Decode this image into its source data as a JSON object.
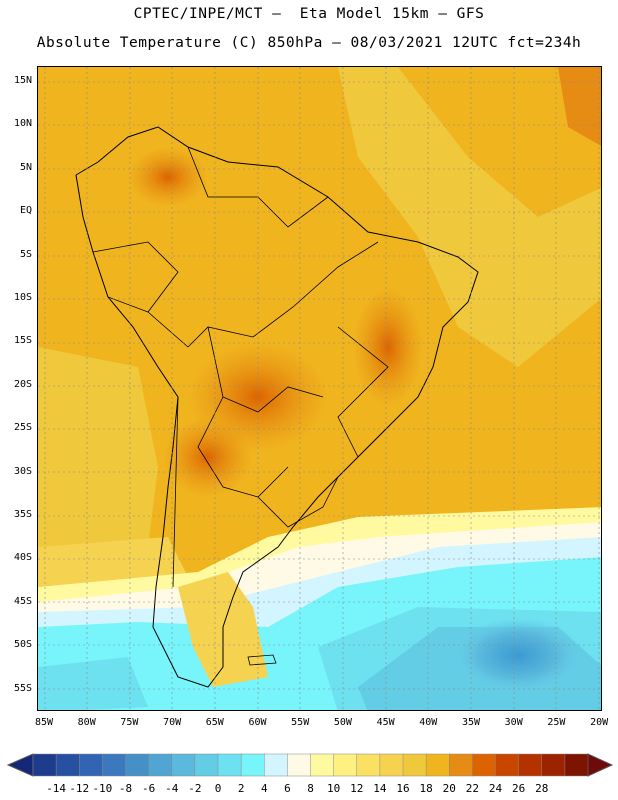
{
  "title_line1": "CPTEC/INPE/MCT –  Eta Model 15km – GFS",
  "title_line2": "Absolute Temperature (C) 850hPa – 08/03/2021 12UTC fct=234h",
  "lat_labels": [
    "15N",
    "10N",
    "5N",
    "EQ",
    "5S",
    "10S",
    "15S",
    "20S",
    "25S",
    "30S",
    "35S",
    "40S",
    "45S",
    "50S",
    "55S"
  ],
  "lon_labels": [
    "85W",
    "80W",
    "75W",
    "70W",
    "65W",
    "60W",
    "55W",
    "50W",
    "45W",
    "40W",
    "35W",
    "30W",
    "25W",
    "20W"
  ],
  "legend": {
    "ticks": [
      "-14",
      "-12",
      "-10",
      "-8",
      "-6",
      "-4",
      "-2",
      "0",
      "2",
      "4",
      "6",
      "8",
      "10",
      "12",
      "14",
      "16",
      "18",
      "20",
      "22",
      "24",
      "26",
      "28"
    ],
    "colors": [
      "#1e3c8c",
      "#2850a0",
      "#3264b4",
      "#3c78be",
      "#4690c8",
      "#50a5d2",
      "#5ab9dc",
      "#64cde6",
      "#6ee1f0",
      "#78f5fa",
      "#d2f5ff",
      "#fffae6",
      "#fffaa0",
      "#fff082",
      "#fae164",
      "#f5d250",
      "#f0c83c",
      "#f0b41e",
      "#e68c14",
      "#dc6400",
      "#c84600",
      "#b43200",
      "#9b2300",
      "#7d1400"
    ],
    "min_arrow_color": "#14287a",
    "max_arrow_color": "#6e0a0a"
  }
}
